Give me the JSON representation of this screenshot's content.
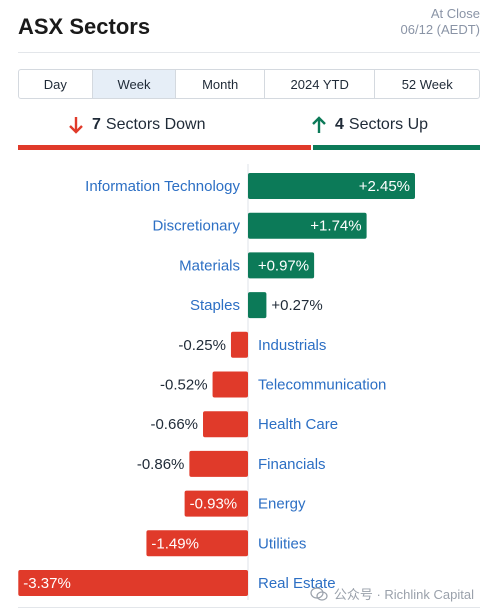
{
  "header": {
    "title": "ASX Sectors",
    "status_line1": "At Close",
    "status_line2": "06/12 (AEDT)"
  },
  "tabs": [
    {
      "label": "Day",
      "active": false,
      "width": 74
    },
    {
      "label": "Week",
      "active": true,
      "width": 84
    },
    {
      "label": "Month",
      "active": false,
      "width": 89
    },
    {
      "label": "2024 YTD",
      "active": false,
      "width": 111
    },
    {
      "label": "52 Week",
      "active": false,
      "width": 104
    }
  ],
  "summary": {
    "down_count": "7",
    "down_label": "Sectors Down",
    "up_count": "4",
    "up_label": "Sectors Up",
    "down_color": "#e03a2a",
    "up_color": "#0c7a58"
  },
  "chart_data": {
    "type": "bar",
    "orientation": "horizontal",
    "unit": "%",
    "categories": [
      "Information Technology",
      "Discretionary",
      "Materials",
      "Staples",
      "Industrials",
      "Telecommunication",
      "Health Care",
      "Financials",
      "Energy",
      "Utilities",
      "Real Estate"
    ],
    "values": [
      2.45,
      1.74,
      0.97,
      0.27,
      -0.25,
      -0.52,
      -0.66,
      -0.86,
      -0.93,
      -1.49,
      -3.37
    ],
    "labels": [
      "+2.45%",
      "+1.74%",
      "+0.97%",
      "+0.27%",
      "-0.25%",
      "-0.52%",
      "-0.66%",
      "-0.86%",
      "-0.93%",
      "-1.49%",
      "-3.37%"
    ],
    "xlim": [
      -3.37,
      2.45
    ],
    "positive_color": "#0c7a58",
    "negative_color": "#e03a2a",
    "category_color": "#2c6fc4"
  },
  "watermark": {
    "text": "公众号 · Richlink Capital"
  }
}
